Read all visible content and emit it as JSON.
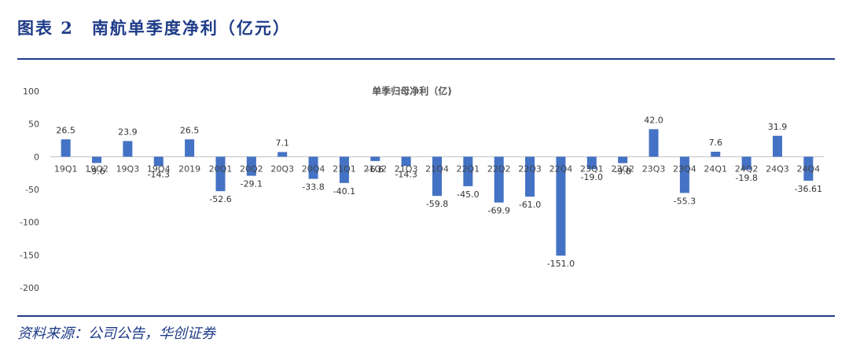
{
  "header": {
    "figure_title": "图表 2　南航单季度净利（亿元）"
  },
  "footer": {
    "source": "资料来源：公司公告，华创证券"
  },
  "chart_data": {
    "type": "bar",
    "title": "单季归母净利（亿)",
    "xlabel": "",
    "ylabel": "",
    "ylim": [
      -200,
      100
    ],
    "yticks": [
      100,
      50,
      0,
      -50,
      -100,
      -150,
      -200
    ],
    "grid": false,
    "bar_color": "#4472c4",
    "categories": [
      "19Q1",
      "19Q2",
      "19Q3",
      "19Q4",
      "2019",
      "20Q1",
      "20Q2",
      "20Q3",
      "20Q4",
      "21Q1",
      "21Q2",
      "21Q3",
      "21Q4",
      "22Q1",
      "22Q2",
      "22Q3",
      "22Q4",
      "23Q1",
      "23Q2",
      "23Q3",
      "23Q4",
      "24Q1",
      "24Q2",
      "24Q3",
      "24Q4"
    ],
    "values": [
      26.5,
      -9.6,
      23.9,
      -14.3,
      26.5,
      -52.6,
      -29.1,
      7.1,
      -33.8,
      -40.1,
      -6.6,
      -14.3,
      -59.8,
      -45.0,
      -69.9,
      -61.0,
      -151.0,
      -19.0,
      -9.8,
      42.0,
      -55.3,
      7.6,
      -19.8,
      31.9,
      -36.61
    ],
    "data_labels": [
      "26.5",
      "-9.6",
      "23.9",
      "-14.3",
      "26.5",
      "-52.6",
      "-29.1",
      "7.1",
      "-33.8",
      "-40.1",
      "-6.6",
      "-14.3",
      "-59.8",
      "-45.0",
      "-69.9",
      "-61.0",
      "-151.0",
      "-19.0",
      "-9.8",
      "42.0",
      "-55.3",
      "7.6",
      "-19.8",
      "31.9",
      "-36.61"
    ]
  }
}
